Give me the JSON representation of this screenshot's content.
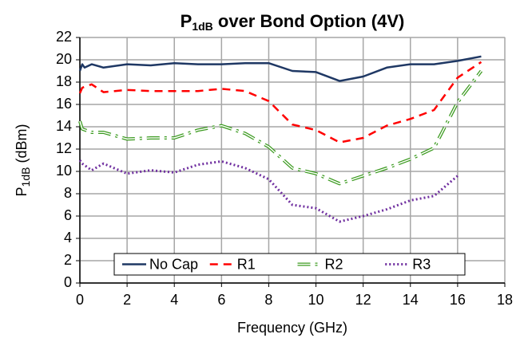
{
  "chart_data": {
    "type": "line",
    "title": [
      "P",
      "1dB",
      " over Bond Option (4V)"
    ],
    "x_label": "Frequency (GHz)",
    "y_label": [
      "P",
      "1dB",
      " (dBm)"
    ],
    "xlim": [
      0,
      18
    ],
    "xticks": [
      0,
      2,
      4,
      6,
      8,
      10,
      12,
      14,
      16,
      18
    ],
    "ylim": [
      0,
      22
    ],
    "yticks": [
      0,
      2,
      4,
      6,
      8,
      10,
      12,
      14,
      16,
      18,
      20,
      22
    ],
    "grid": true,
    "legend": "bottom",
    "series": [
      {
        "name": "No Cap",
        "color": "#1f3864",
        "style": "solid",
        "x": [
          0,
          0.1,
          0.2,
          0.5,
          1,
          2,
          3,
          4,
          5,
          6,
          7,
          8,
          9,
          10,
          11,
          12,
          13,
          14,
          15,
          16,
          17
        ],
        "values": [
          19.0,
          19.6,
          19.3,
          19.6,
          19.3,
          19.6,
          19.5,
          19.7,
          19.6,
          19.6,
          19.7,
          19.7,
          19.0,
          18.9,
          18.1,
          18.5,
          19.3,
          19.6,
          19.6,
          19.9,
          20.3
        ]
      },
      {
        "name": "R1",
        "color": "#ff0000",
        "style": "dashed",
        "x": [
          0,
          0.1,
          0.5,
          1,
          2,
          3,
          4,
          5,
          6,
          7,
          8,
          9,
          10,
          11,
          12,
          13,
          14,
          15,
          16,
          17
        ],
        "values": [
          17.0,
          17.5,
          17.8,
          17.1,
          17.3,
          17.2,
          17.2,
          17.2,
          17.4,
          17.2,
          16.3,
          14.2,
          13.7,
          12.6,
          13.0,
          14.1,
          14.7,
          15.5,
          18.4,
          19.8
        ]
      },
      {
        "name": "R2",
        "color": "#3a9a1e",
        "style": "dashdot",
        "x": [
          0,
          0.1,
          0.5,
          1,
          2,
          3,
          4,
          5,
          6,
          7,
          8,
          9,
          10,
          11,
          12,
          13,
          14,
          15,
          16,
          17
        ],
        "values": [
          14.5,
          13.8,
          13.5,
          13.5,
          12.9,
          13.0,
          13.0,
          13.7,
          14.1,
          13.4,
          12.2,
          10.3,
          9.8,
          8.9,
          9.6,
          10.3,
          11.1,
          12.1,
          16.2,
          19.0
        ]
      },
      {
        "name": "R3",
        "color": "#7030a0",
        "style": "dotted",
        "x": [
          0,
          0.1,
          0.5,
          1,
          2,
          3,
          4,
          5,
          6,
          7,
          8,
          9,
          10,
          11,
          12,
          13,
          14,
          15,
          16
        ],
        "values": [
          11.0,
          10.7,
          10.1,
          10.7,
          9.8,
          10.1,
          9.9,
          10.6,
          10.9,
          10.3,
          9.3,
          7.0,
          6.7,
          5.5,
          6.0,
          6.6,
          7.4,
          7.8,
          9.6
        ]
      }
    ]
  }
}
